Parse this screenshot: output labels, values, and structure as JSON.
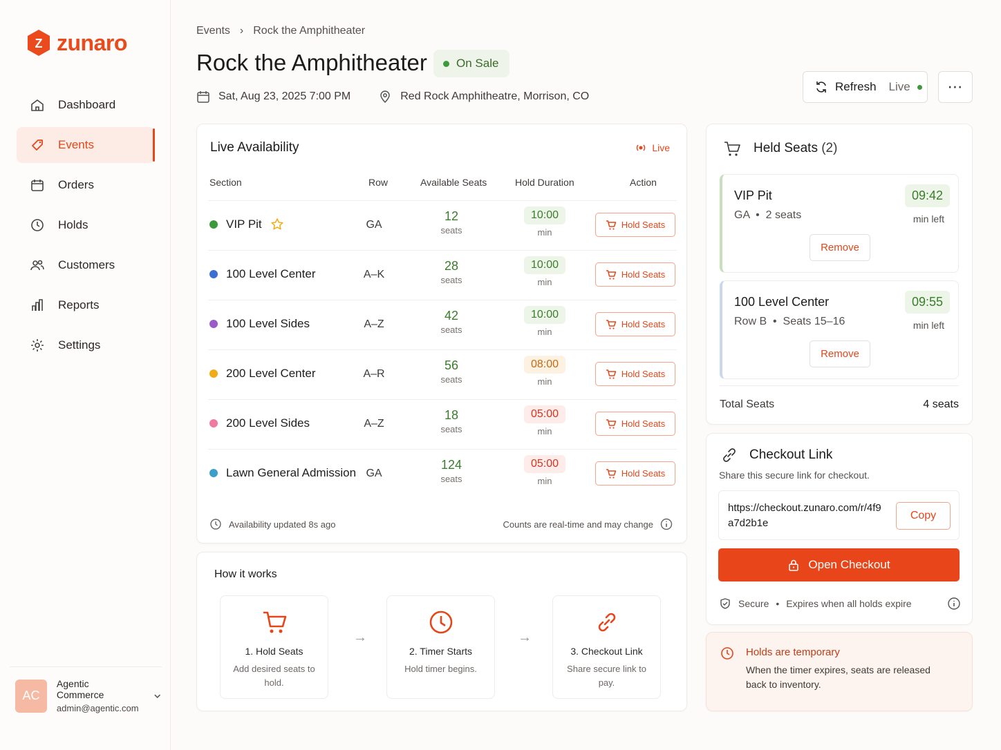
{
  "brand": {
    "name": "zunaro",
    "accent": "#e8461a"
  },
  "sidebar": {
    "items": [
      {
        "label": "Dashboard",
        "icon": "home-icon"
      },
      {
        "label": "Events",
        "icon": "ticket-icon",
        "active": true
      },
      {
        "label": "Orders",
        "icon": "calendar-icon"
      },
      {
        "label": "Holds",
        "icon": "clock-icon"
      },
      {
        "label": "Customers",
        "icon": "users-icon"
      },
      {
        "label": "Reports",
        "icon": "bar-chart-icon"
      },
      {
        "label": "Settings",
        "icon": "gear-icon"
      }
    ],
    "user": {
      "initials": "AC",
      "name": "Agentic Commerce",
      "email": "admin@agentic.com"
    }
  },
  "header": {
    "breadcrumb": [
      "Events",
      "Rock the Amphitheater"
    ],
    "title": "Rock the Amphitheater",
    "status": "On Sale",
    "date": "Sat, Aug 23, 2025 7:00 PM",
    "venue": "Red Rock Amphitheatre, Morrison, CO",
    "refresh_label": "Refresh",
    "live_label": "Live",
    "more_label": "⋯"
  },
  "availability": {
    "title": "Live Availability",
    "live_label": "Live",
    "columns": [
      "Section",
      "Row",
      "Available Seats",
      "Hold Duration",
      "Action"
    ],
    "rows": [
      {
        "section": "VIP Pit",
        "row": "GA",
        "seats": "12",
        "seats_unit": "seats",
        "hold": "10:00",
        "hold_unit": "min",
        "level": "green",
        "color": "#3c9a3c",
        "starred": true,
        "action": "Hold Seats"
      },
      {
        "section": "100 Level Center",
        "row": "A–K",
        "seats": "28",
        "seats_unit": "seats",
        "hold": "10:00",
        "hold_unit": "min",
        "level": "green",
        "color": "#3b6fd4",
        "action": "Hold Seats"
      },
      {
        "section": "100 Level Sides",
        "row": "A–Z",
        "seats": "42",
        "seats_unit": "seats",
        "hold": "10:00",
        "hold_unit": "min",
        "level": "green",
        "color": "#9a5cc9",
        "action": "Hold Seats"
      },
      {
        "section": "200 Level Center",
        "row": "A–R",
        "seats": "56",
        "seats_unit": "seats",
        "hold": "08:00",
        "hold_unit": "min",
        "level": "amber",
        "color": "#f0ac16",
        "action": "Hold Seats"
      },
      {
        "section": "200 Level Sides",
        "row": "A–Z",
        "seats": "18",
        "seats_unit": "seats",
        "hold": "05:00",
        "hold_unit": "min",
        "level": "red",
        "color": "#f07aa0",
        "action": "Hold Seats"
      },
      {
        "section": "Lawn General Admission",
        "row": "GA",
        "seats": "124",
        "seats_unit": "seats",
        "hold": "05:00",
        "hold_unit": "min",
        "level": "red",
        "color": "#3a9fc9",
        "action": "Hold Seats"
      }
    ],
    "updated": "Availability updated 8s ago",
    "note": "Counts are real-time and may change"
  },
  "how": {
    "title": "How it works",
    "steps": [
      {
        "title": "1. Hold Seats",
        "desc": "Add desired seats to hold.",
        "icon": "cart-icon"
      },
      {
        "title": "2. Timer Starts",
        "desc": "Hold timer begins.",
        "icon": "clock-icon"
      },
      {
        "title": "3. Checkout Link",
        "desc": "Share secure link to pay.",
        "icon": "link-icon"
      }
    ]
  },
  "held": {
    "title": "Held Seats",
    "count": "(2)",
    "items": [
      {
        "name": "VIP Pit",
        "sub_a": "GA",
        "sub_b": "2 seats",
        "timer": "09:42",
        "left": "min left",
        "remove": "Remove"
      },
      {
        "name": "100 Level Center",
        "sub_a": "Row B",
        "sub_b": "Seats 15–16",
        "timer": "09:55",
        "left": "min left",
        "remove": "Remove"
      }
    ],
    "total_label": "Total Seats",
    "total_value": "4 seats"
  },
  "checkout": {
    "title": "Checkout Link",
    "subtitle": "Share this secure link for checkout.",
    "url": "https://checkout.zunaro.com/r/4f9a7d2b1e",
    "copy_label": "Copy",
    "open_label": "Open Checkout",
    "secure_label": "Secure",
    "expires_label": "Expires when all holds expire"
  },
  "notice": {
    "title": "Holds are temporary",
    "body": "When the timer expires, seats are released back to inventory."
  }
}
